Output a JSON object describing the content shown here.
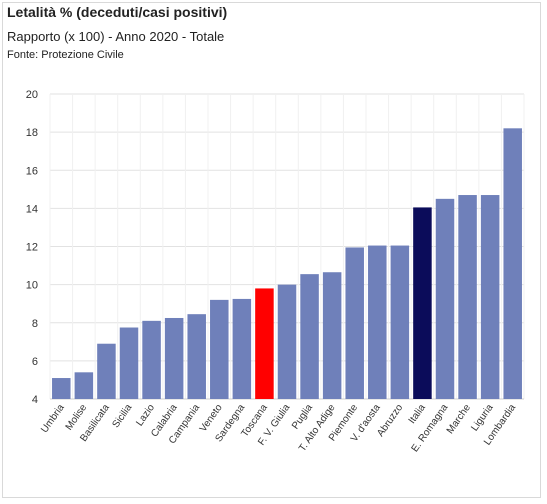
{
  "header": {
    "title": "Letalità % (deceduti/casi positivi)",
    "subtitle": "Rapporto (x 100) - Anno 2020 - Totale",
    "source": "Fonte: Protezione Civile"
  },
  "colors": {
    "default_bar": "#6f80ba",
    "toscana_bar": "#ff0000",
    "italia_bar": "#0b0c5a",
    "grid": "#e2e2e2",
    "text": "#333333"
  },
  "chart_data": {
    "type": "bar",
    "title": "Letalità % (deceduti/casi positivi)",
    "subtitle": "Rapporto (x 100) - Anno 2020 - Totale",
    "categories": [
      "Umbria",
      "Molise",
      "Basilicata",
      "Sicilia",
      "Lazio",
      "Calabria",
      "Campania",
      "Veneto",
      "Sardegna",
      "Toscana",
      "F. V. Giulia",
      "Puglia",
      "T. Alto Adige",
      "Piemonte",
      "V. d'aosta",
      "Abruzzo",
      "Italia",
      "E. Romagna",
      "Marche",
      "Liguria",
      "Lombardia"
    ],
    "values": [
      5.1,
      5.4,
      6.9,
      7.75,
      8.1,
      8.25,
      8.45,
      9.2,
      9.25,
      9.8,
      10.0,
      10.55,
      10.65,
      11.95,
      12.05,
      12.05,
      14.05,
      14.5,
      14.7,
      14.7,
      18.2
    ],
    "highlight": {
      "Toscana": "toscana_bar",
      "Italia": "italia_bar"
    },
    "ylim": [
      4,
      20
    ],
    "yticks": [
      4,
      6,
      8,
      10,
      12,
      14,
      16,
      18,
      20
    ],
    "xlabel": "",
    "ylabel": "",
    "grid": true,
    "legend": "none"
  }
}
